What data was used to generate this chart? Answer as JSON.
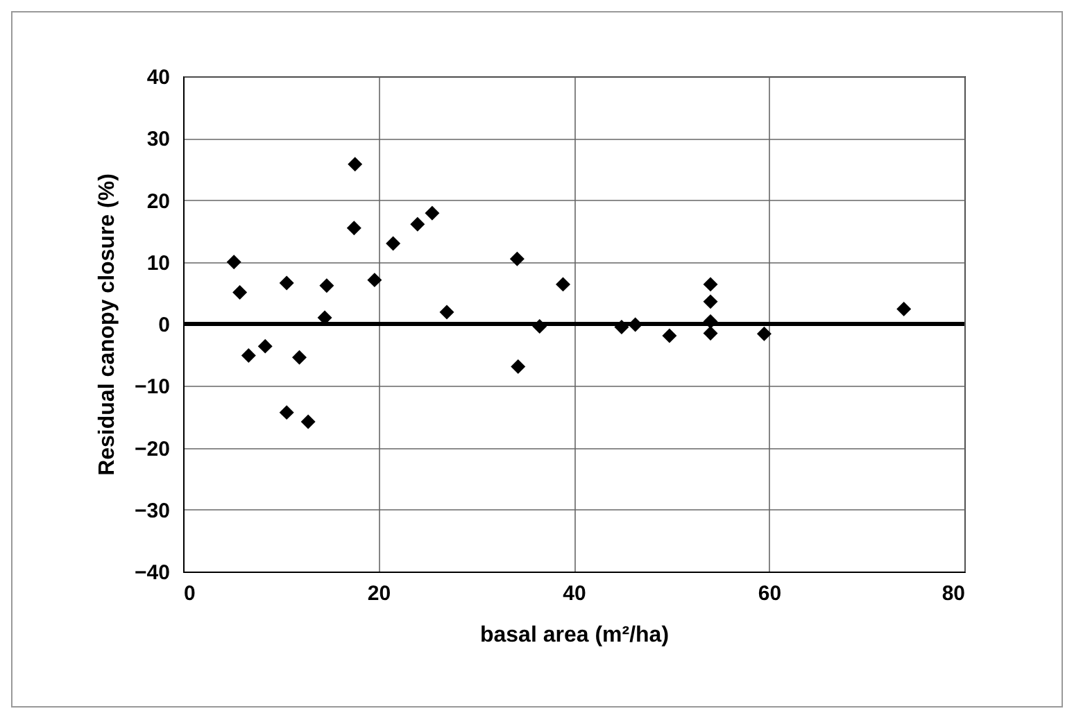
{
  "chart_data": {
    "type": "scatter",
    "xlabel": "basal area (m²/ha)",
    "ylabel": "Residual canopy closure (%)",
    "x": [
      5.2,
      5.8,
      6.7,
      8.4,
      10.6,
      10.6,
      11.9,
      12.8,
      14.7,
      14.5,
      17.6,
      17.5,
      19.6,
      21.5,
      24.0,
      25.5,
      27.0,
      34.2,
      34.3,
      38.9,
      36.5,
      44.9,
      46.3,
      49.8,
      54.0,
      54.0,
      54.0,
      54.0,
      59.5,
      73.8
    ],
    "series": [
      {
        "color": "#000000",
        "values": [
          10.0,
          5.1,
          -5.1,
          -3.6,
          6.6,
          -14.3,
          -5.4,
          -15.8,
          6.2,
          1.0,
          25.8,
          15.5,
          7.1,
          13.0,
          16.1,
          17.9,
          1.9,
          10.5,
          -6.9,
          6.4,
          -0.4,
          -0.5,
          -0.1,
          -1.9,
          6.4,
          3.6,
          0.4,
          -1.5,
          -1.6,
          2.4
        ]
      }
    ],
    "xlim": [
      0,
      80
    ],
    "xticks": [
      0,
      20,
      40,
      60,
      80
    ],
    "ylim": [
      -40,
      40
    ],
    "yticks": [
      -40,
      -30,
      -20,
      -10,
      0,
      10,
      20,
      30,
      40
    ],
    "ref_lines": [
      {
        "axis": "y",
        "value": 0,
        "color": "#000000"
      }
    ],
    "grid": true,
    "marker": "diamond",
    "legend": false
  }
}
